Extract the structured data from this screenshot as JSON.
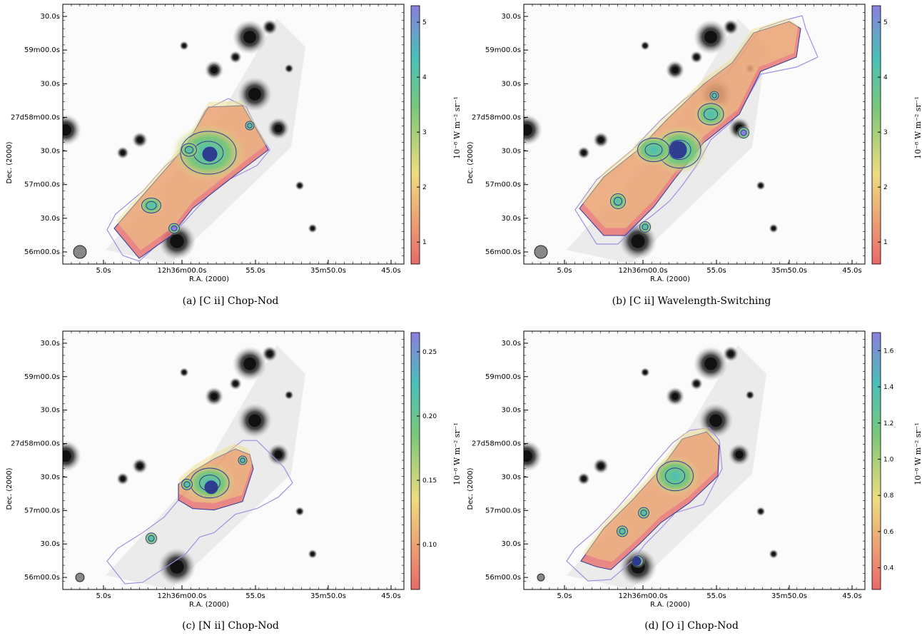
{
  "figure": {
    "panels": [
      {
        "id": "a",
        "caption": "(a) [C ii] Chop-Nod",
        "xlabel": "R.A. (2000)",
        "ylabel": "Dec. (2000)",
        "xticks": [
          "5.0s",
          "12h36m00.0s",
          "55.0s",
          "35m50.0s",
          "45.0s"
        ],
        "yticks": [
          "30.0s",
          "59m00.0s",
          "30.0s",
          "27d58m00.0s",
          "30.0s",
          "57m00.0s",
          "30.0s",
          "56m00.0s"
        ],
        "colorbar": {
          "label": "10⁻⁸ W m⁻² sr⁻¹",
          "ticks": [
            "1",
            "2",
            "3",
            "4",
            "5"
          ],
          "min": 0.6,
          "max": 5.3
        }
      },
      {
        "id": "b",
        "caption": "(b) [C ii] Wavelength-Switching",
        "xlabel": "R.A. (2000)",
        "ylabel": "Dec. (2000)",
        "xticks": [
          "5.0s",
          "12h36m00.0s",
          "55.0s",
          "35m50.0s",
          "45.0s"
        ],
        "yticks": [
          "30.0s",
          "59m00.0s",
          "30.0s",
          "27d58m00.0s",
          "30.0s",
          "57m00.0s",
          "30.0s",
          "56m00.0s"
        ],
        "colorbar": {
          "label": "10⁻⁸ W m⁻² sr⁻¹",
          "ticks": [
            "1",
            "2",
            "3",
            "4",
            "5"
          ],
          "min": 0.6,
          "max": 5.3
        }
      },
      {
        "id": "c",
        "caption": "(c) [N ii] Chop-Nod",
        "xlabel": "R.A. (2000)",
        "ylabel": "Dec. (2000)",
        "xticks": [
          "5.0s",
          "12h36m00.0s",
          "55.0s",
          "35m50.0s",
          "45.0s"
        ],
        "yticks": [
          "30.0s",
          "59m00.0s",
          "30.0s",
          "27d58m00.0s",
          "30.0s",
          "57m00.0s",
          "30.0s",
          "56m00.0s"
        ],
        "colorbar": {
          "label": "10⁻⁸ W m⁻² sr⁻¹",
          "ticks": [
            "0.10",
            "0.15",
            "0.20",
            "0.25"
          ],
          "min": 0.065,
          "max": 0.265
        }
      },
      {
        "id": "d",
        "caption": "(d) [O i] Chop-Nod",
        "xlabel": "R.A. (2000)",
        "ylabel": "Dec. (2000)",
        "xticks": [
          "5.0s",
          "12h36m00.0s",
          "55.0s",
          "35m50.0s",
          "45.0s"
        ],
        "yticks": [
          "30.0s",
          "59m00.0s",
          "30.0s",
          "27d58m00.0s",
          "30.0s",
          "57m00.0s",
          "30.0s",
          "56m00.0s"
        ],
        "colorbar": {
          "label": "10⁻⁸ W m⁻² sr⁻¹",
          "ticks": [
            "0.4",
            "0.6",
            "0.8",
            "1.0",
            "1.2",
            "1.4",
            "1.6"
          ],
          "min": 0.28,
          "max": 1.7
        }
      }
    ],
    "colors": {
      "colormap_low": "#e86a6a",
      "colormap_mid": "#eedc80",
      "colormap_green": "#7cc77a",
      "colormap_teal": "#4bbfb8",
      "colormap_high": "#8a7fdc",
      "contour": "#2d3a9a",
      "coverage_outline": "#a58ee0",
      "stars": "#111111"
    }
  }
}
